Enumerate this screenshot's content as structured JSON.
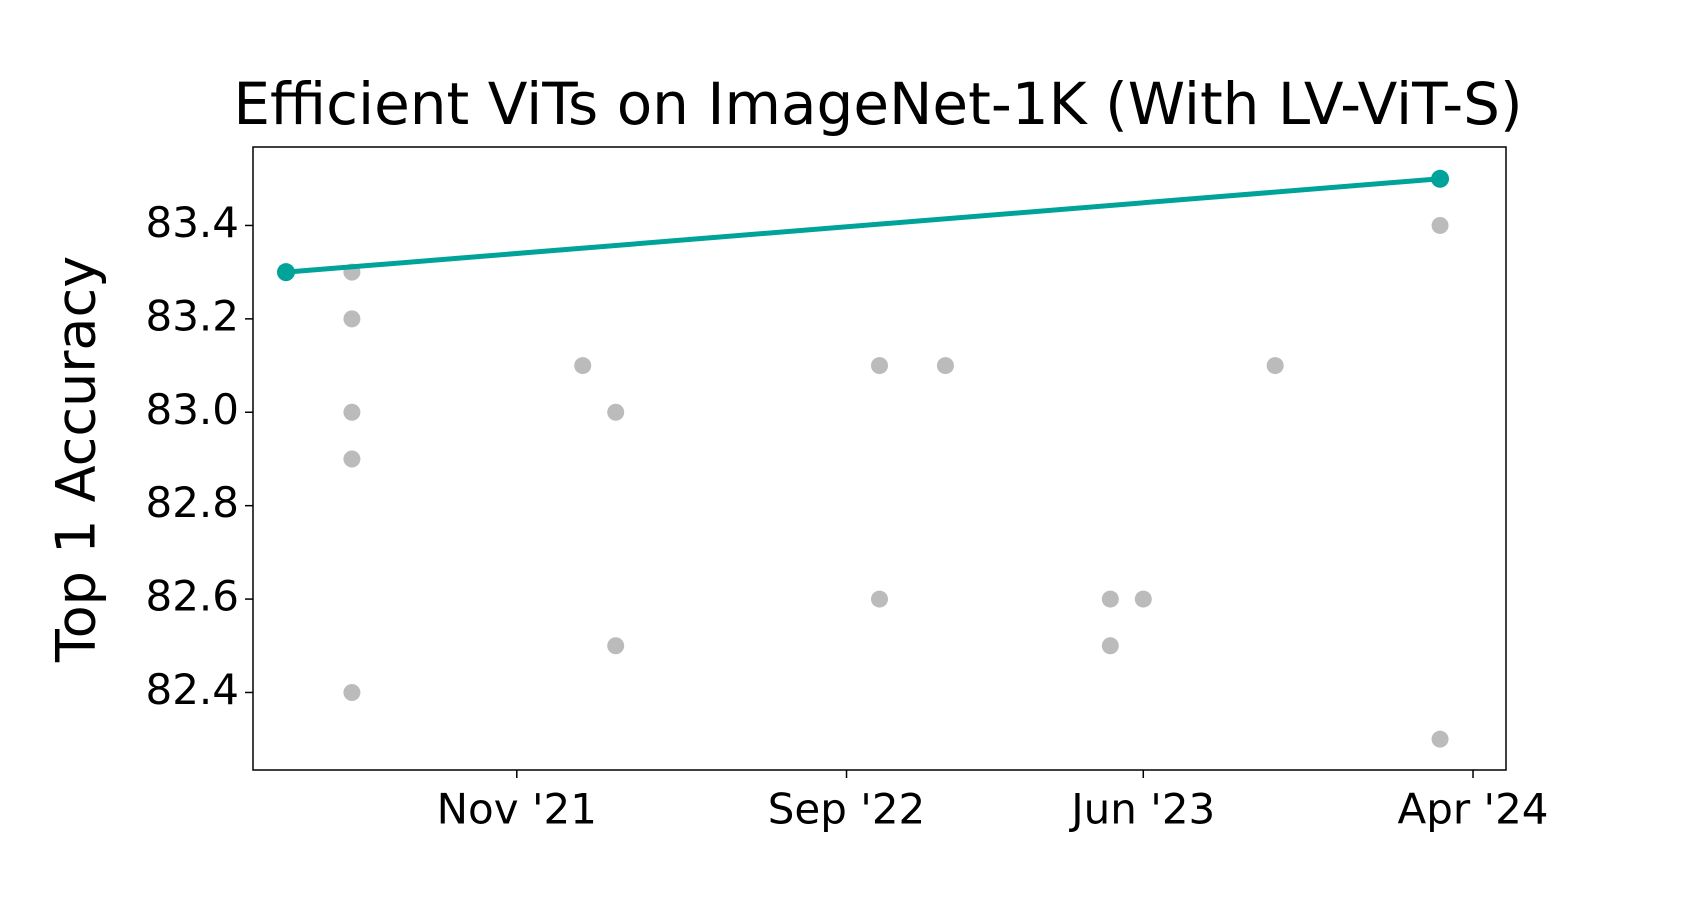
{
  "chart_data": {
    "type": "line",
    "title": "Efficient ViTs on ImageNet-1K (With LV-ViT-S)",
    "y_label": "Top 1 Accuracy",
    "series": [
      {
        "type": "scatter",
        "color": "#bbbbbb",
        "x": [
          "2021-06",
          "2021-06",
          "2021-06",
          "2021-06",
          "2021-06",
          "2022-01",
          "2022-02",
          "2022-02",
          "2022-10",
          "2022-10",
          "2022-12",
          "2023-05",
          "2023-05",
          "2023-06",
          "2023-10",
          "2024-03",
          "2024-03"
        ],
        "values": [
          83.3,
          83.2,
          83.0,
          82.9,
          82.4,
          83.1,
          83.0,
          82.5,
          83.1,
          82.6,
          83.1,
          82.6,
          82.5,
          82.6,
          83.1,
          83.4,
          82.3
        ]
      },
      {
        "type": "line",
        "color": "#00a39a",
        "x": [
          "2021-04",
          "2024-03"
        ],
        "values": [
          83.3,
          83.5
        ]
      }
    ],
    "xlim": [
      "2021-03",
      "2024-05"
    ],
    "xticks": [
      {
        "value": "2021-11",
        "label": "Nov '21"
      },
      {
        "value": "2022-09",
        "label": "Sep '22"
      },
      {
        "value": "2023-06",
        "label": "Jun '23"
      },
      {
        "value": "2024-04",
        "label": "Apr '24"
      }
    ],
    "ylim": [
      82.234,
      83.568
    ],
    "yticks": [
      82.4,
      82.6,
      82.8,
      {
        "value": 83,
        "label": "83.0"
      },
      83.2,
      83.4
    ],
    "grid": false
  }
}
